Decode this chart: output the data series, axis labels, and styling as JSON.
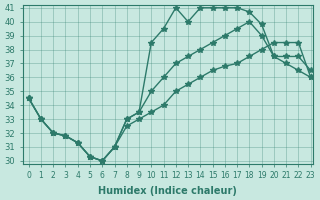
{
  "xlabel": "Humidex (Indice chaleur)",
  "ylabel": "",
  "background_color": "#c8e8e0",
  "line_color": "#2d7a6a",
  "xlim": [
    0,
    23
  ],
  "ylim": [
    30,
    41
  ],
  "xticks": [
    0,
    1,
    2,
    3,
    4,
    5,
    6,
    7,
    8,
    9,
    10,
    11,
    12,
    13,
    14,
    15,
    16,
    17,
    18,
    19,
    20,
    21,
    22,
    23
  ],
  "yticks": [
    30,
    31,
    32,
    33,
    34,
    35,
    36,
    37,
    38,
    39,
    40,
    41
  ],
  "line1_x": [
    0,
    1,
    2,
    3,
    4,
    5,
    6,
    7,
    8,
    9,
    10,
    11,
    12,
    13,
    14,
    15,
    16,
    17,
    18,
    19,
    20,
    21,
    22,
    23
  ],
  "line1_y": [
    34.5,
    33.0,
    32.0,
    31.8,
    31.3,
    30.3,
    30.0,
    31.0,
    33.0,
    33.5,
    38.5,
    39.5,
    41.0,
    40.0,
    41.0,
    41.0,
    41.0,
    41.0,
    40.7,
    39.8,
    37.5,
    37.5,
    37.5,
    36.5
  ],
  "line2_x": [
    0,
    1,
    2,
    3,
    4,
    5,
    6,
    7,
    8,
    9,
    10,
    11,
    12,
    13,
    14,
    15,
    16,
    17,
    18,
    19,
    20,
    21,
    22,
    23
  ],
  "line2_y": [
    34.5,
    33.0,
    32.0,
    31.8,
    31.3,
    30.3,
    30.0,
    31.0,
    33.0,
    33.5,
    35.0,
    36.0,
    37.0,
    37.5,
    38.0,
    38.5,
    39.0,
    39.5,
    40.0,
    39.0,
    37.5,
    37.0,
    36.5,
    36.0
  ],
  "line3_x": [
    0,
    1,
    2,
    3,
    4,
    5,
    6,
    7,
    8,
    9,
    10,
    11,
    12,
    13,
    14,
    15,
    16,
    17,
    18,
    19,
    20,
    21,
    22,
    23
  ],
  "line3_y": [
    34.5,
    33.0,
    32.0,
    31.8,
    31.3,
    30.3,
    30.0,
    31.0,
    32.5,
    33.0,
    33.5,
    34.0,
    35.0,
    35.5,
    36.0,
    36.5,
    36.8,
    37.0,
    37.5,
    38.0,
    38.5,
    38.5,
    38.5,
    36.0
  ]
}
